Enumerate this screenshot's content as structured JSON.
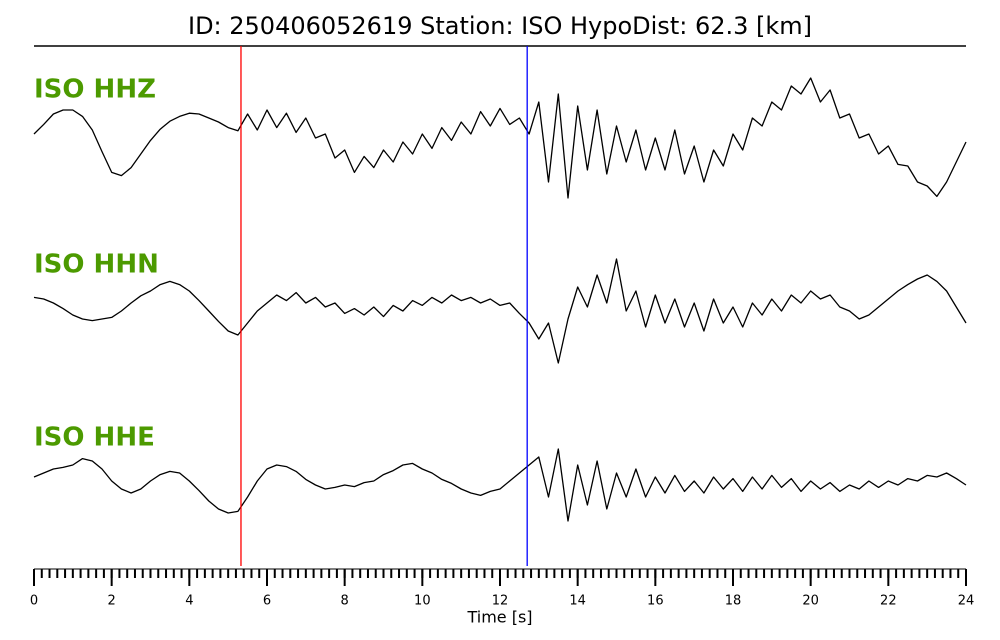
{
  "chart_data": {
    "type": "line",
    "title": "ID: 250406052619   Station: ISO   HypoDist:    62.3 [km]",
    "xlabel": "Time [s]",
    "xlim": [
      0,
      24
    ],
    "xticks": [
      0,
      2,
      4,
      6,
      8,
      10,
      12,
      14,
      16,
      18,
      20,
      22,
      24
    ],
    "x_minor_step": 0.2,
    "ylim": [
      -100,
      100
    ],
    "label_color": "#4c9a00",
    "picks": [
      {
        "x": 5.33,
        "color": "#ff0000"
      },
      {
        "x": 12.7,
        "color": "#0000ff"
      }
    ],
    "x": [
      0,
      0.25,
      0.5,
      0.75,
      1,
      1.25,
      1.5,
      1.75,
      2,
      2.25,
      2.5,
      2.75,
      3,
      3.25,
      3.5,
      3.75,
      4,
      4.25,
      4.5,
      4.75,
      5,
      5.25,
      5.5,
      5.75,
      6,
      6.25,
      6.5,
      6.75,
      7,
      7.25,
      7.5,
      7.75,
      8,
      8.25,
      8.5,
      8.75,
      9,
      9.25,
      9.5,
      9.75,
      10,
      10.25,
      10.5,
      10.75,
      11,
      11.25,
      11.5,
      11.75,
      12,
      12.25,
      12.5,
      12.75,
      13,
      13.25,
      13.5,
      13.75,
      14,
      14.25,
      14.5,
      14.75,
      15,
      15.25,
      15.5,
      15.75,
      16,
      16.25,
      16.5,
      16.75,
      17,
      17.25,
      17.5,
      17.75,
      18,
      18.25,
      18.5,
      18.75,
      19,
      19.25,
      19.5,
      19.75,
      20,
      20.25,
      20.5,
      20.75,
      21,
      21.25,
      21.5,
      21.75,
      22,
      22.25,
      22.5,
      22.75,
      23,
      23.25,
      23.5,
      23.75,
      24
    ],
    "series": [
      {
        "name": "ISO HHZ",
        "color": "#000000",
        "values": [
          20,
          32,
          45,
          50,
          50,
          42,
          25,
          -2,
          -28,
          -32,
          -22,
          -5,
          12,
          26,
          36,
          42,
          46,
          45,
          40,
          35,
          28,
          24,
          45,
          25,
          50,
          28,
          46,
          22,
          40,
          15,
          20,
          -10,
          0,
          -28,
          -8,
          -22,
          0,
          -15,
          10,
          -5,
          20,
          2,
          28,
          12,
          35,
          20,
          48,
          30,
          52,
          32,
          40,
          20,
          60,
          -40,
          70,
          -60,
          55,
          -25,
          50,
          -30,
          30,
          -15,
          25,
          -25,
          15,
          -25,
          25,
          -30,
          5,
          -40,
          0,
          -20,
          20,
          0,
          40,
          30,
          60,
          50,
          80,
          70,
          90,
          60,
          75,
          40,
          45,
          15,
          20,
          -5,
          5,
          -18,
          -20,
          -40,
          -45,
          -58,
          -40,
          -15,
          10
        ]
      },
      {
        "name": "ISO HHN",
        "color": "#000000",
        "values": [
          22,
          20,
          15,
          8,
          0,
          -5,
          -7,
          -5,
          -3,
          5,
          15,
          24,
          30,
          38,
          42,
          38,
          30,
          18,
          5,
          -8,
          -20,
          -25,
          -10,
          5,
          15,
          25,
          18,
          28,
          15,
          22,
          10,
          15,
          2,
          8,
          0,
          10,
          -2,
          12,
          5,
          18,
          12,
          22,
          15,
          25,
          18,
          22,
          15,
          20,
          12,
          15,
          2,
          -10,
          -30,
          -10,
          -60,
          -5,
          35,
          10,
          50,
          15,
          70,
          5,
          30,
          -15,
          25,
          -10,
          20,
          -15,
          15,
          -20,
          20,
          -10,
          10,
          -15,
          15,
          0,
          20,
          5,
          25,
          15,
          30,
          20,
          25,
          10,
          5,
          -5,
          0,
          10,
          20,
          30,
          38,
          45,
          50,
          42,
          30,
          10,
          -10
        ]
      },
      {
        "name": "ISO HHE",
        "color": "#000000",
        "values": [
          10,
          15,
          20,
          22,
          25,
          33,
          30,
          20,
          5,
          -5,
          -10,
          -5,
          5,
          13,
          17,
          15,
          5,
          -7,
          -20,
          -30,
          -35,
          -33,
          -15,
          5,
          20,
          25,
          23,
          17,
          7,
          0,
          -5,
          -3,
          0,
          -2,
          3,
          5,
          13,
          18,
          25,
          27,
          20,
          15,
          7,
          2,
          -5,
          -10,
          -13,
          -8,
          -5,
          5,
          15,
          25,
          35,
          -15,
          45,
          -45,
          25,
          -25,
          30,
          -30,
          15,
          -15,
          20,
          -15,
          10,
          -10,
          12,
          -8,
          5,
          -10,
          10,
          -5,
          8,
          -8,
          10,
          -5,
          12,
          -3,
          8,
          -8,
          5,
          -5,
          3,
          -8,
          0,
          -5,
          5,
          -3,
          5,
          0,
          8,
          5,
          12,
          10,
          15,
          8,
          0
        ]
      }
    ]
  }
}
